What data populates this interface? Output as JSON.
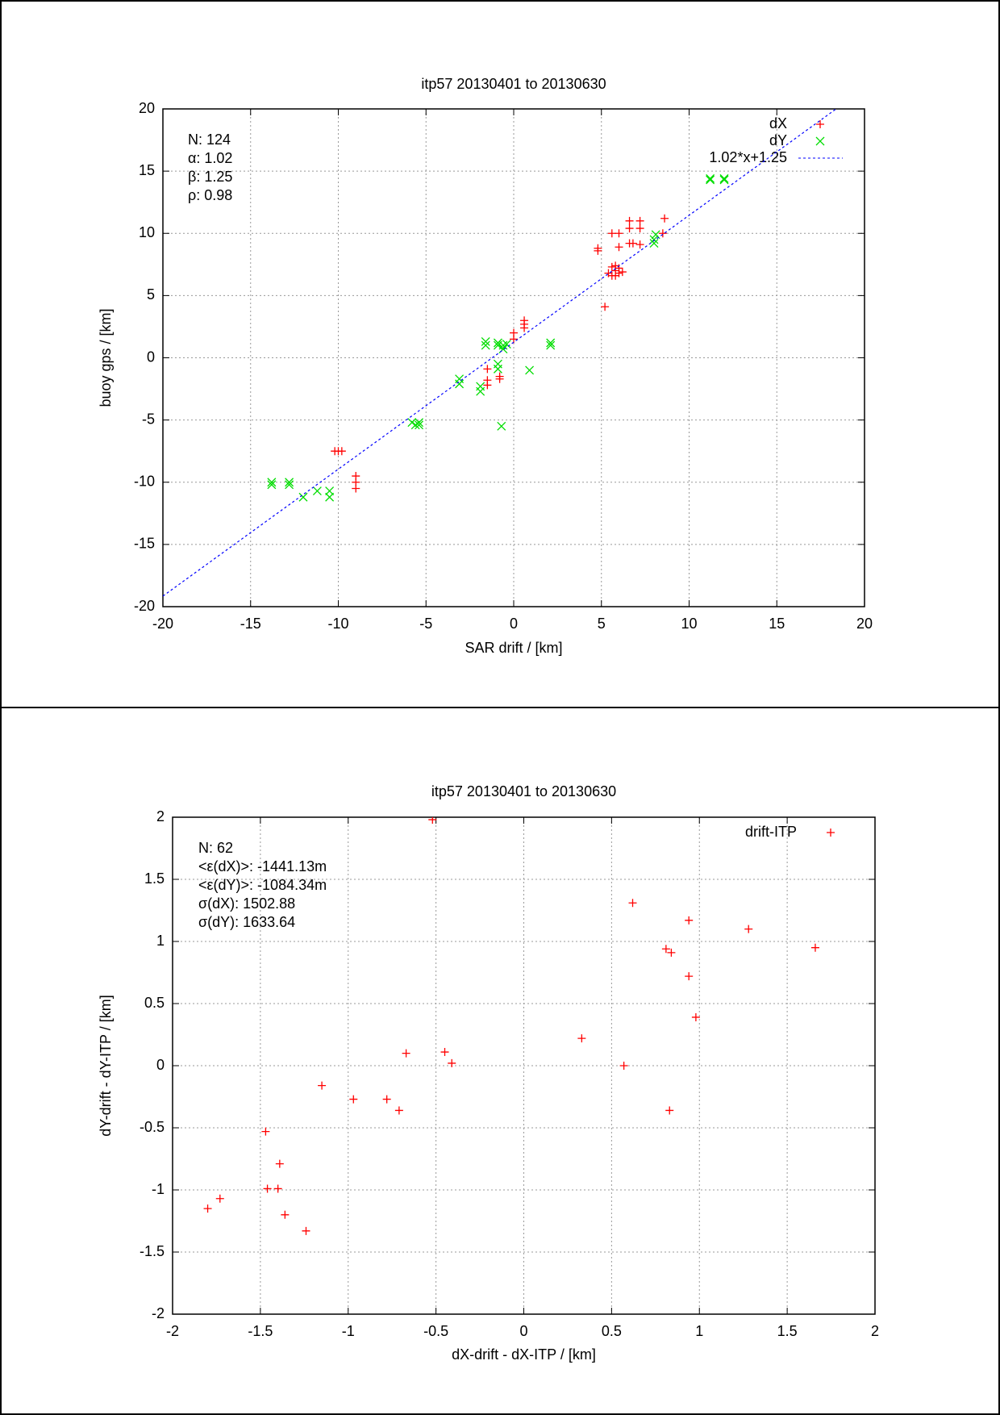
{
  "chart_data": [
    {
      "type": "scatter",
      "title": "itp57 20130401 to 20130630",
      "x_label": "SAR drift / [km]",
      "y_label": "buoy gps / [km]",
      "xlim": [
        -20,
        20
      ],
      "ylim": [
        -20,
        20
      ],
      "xticks": [
        -20,
        -15,
        -10,
        -5,
        0,
        5,
        10,
        15,
        20
      ],
      "yticks": [
        -20,
        -15,
        -10,
        -5,
        0,
        5,
        10,
        15,
        20
      ],
      "grid": true,
      "legend": "upper right",
      "annotations": [
        "N: 124",
        "α: 1.02",
        "β: 1.25",
        "ρ: 0.98"
      ],
      "series": [
        {
          "name": "dX",
          "color": "#ff0000",
          "marker": "plus",
          "x": [
            8.6,
            8.5,
            6.6,
            6.6,
            7.2,
            7.2,
            5.6,
            6.0,
            6.0,
            6.6,
            6.8,
            7.2,
            4.8,
            4.8,
            5.6,
            5.8,
            6.0,
            5.4,
            5.6,
            5.8,
            6.0,
            6.2,
            5.8,
            5.2,
            0.6,
            0.6,
            0.6,
            0.0,
            0.0,
            -1.5,
            -1.5,
            -1.5,
            -0.8,
            -0.8,
            -10.2,
            -10.0,
            -9.8,
            -9.0,
            -9.0,
            -9.0
          ],
          "y": [
            11.2,
            10.0,
            11.0,
            10.4,
            11.0,
            10.4,
            10.0,
            10.0,
            8.9,
            9.2,
            9.2,
            9.1,
            8.8,
            8.6,
            7.3,
            7.0,
            7.2,
            6.8,
            6.6,
            6.6,
            6.8,
            6.9,
            7.4,
            4.1,
            3.0,
            2.7,
            2.4,
            2.0,
            1.5,
            -0.9,
            -1.8,
            -2.2,
            -1.5,
            -1.7,
            -7.5,
            -7.5,
            -7.5,
            -9.5,
            -10.0,
            -10.5
          ]
        },
        {
          "name": "dY",
          "color": "#00dd00",
          "marker": "cross",
          "x": [
            11.2,
            11.2,
            12.0,
            12.0,
            8.0,
            8.0,
            8.1,
            2.1,
            2.1,
            -1.6,
            -1.6,
            -0.9,
            -0.9,
            -0.6,
            -0.6,
            -0.4,
            -0.9,
            -0.9,
            0.9,
            -0.7,
            -3.1,
            -3.1,
            -1.9,
            -1.9,
            -5.8,
            -5.6,
            -5.4,
            -5.4,
            -13.8,
            -13.8,
            -12.8,
            -12.8,
            -12.0,
            -11.2,
            -10.5,
            -10.5
          ],
          "y": [
            14.3,
            14.4,
            14.3,
            14.4,
            9.2,
            9.5,
            9.9,
            1.0,
            1.2,
            1.3,
            1.0,
            1.2,
            1.0,
            1.0,
            0.7,
            1.1,
            -0.5,
            -0.9,
            -1.0,
            -5.5,
            -1.7,
            -2.1,
            -2.3,
            -2.7,
            -5.2,
            -5.4,
            -5.2,
            -5.4,
            -10.0,
            -10.2,
            -10.0,
            -10.2,
            -11.2,
            -10.7,
            -10.7,
            -11.2
          ]
        }
      ],
      "fit": {
        "name": "1.02*x+1.25",
        "color": "#0000ff",
        "slope": 1.02,
        "intercept": 1.25
      }
    },
    {
      "type": "scatter",
      "title": "itp57 20130401 to 20130630",
      "x_label": "dX-drift - dX-ITP / [km]",
      "y_label": "dY-drift - dY-ITP / [km]",
      "xlim": [
        -2,
        2
      ],
      "ylim": [
        -2,
        2
      ],
      "xticks": [
        -2,
        -1.5,
        -1,
        -0.5,
        0,
        0.5,
        1,
        1.5,
        2
      ],
      "yticks": [
        -2,
        -1.5,
        -1,
        -0.5,
        0,
        0.5,
        1,
        1.5,
        2
      ],
      "grid": true,
      "legend": "upper right",
      "annotations": [
        "N: 62",
        "<ε(dX)>:  -1441.13m",
        "<ε(dY)>: -1084.34m",
        "σ(dX):  1502.88",
        "σ(dY):  1633.64"
      ],
      "series": [
        {
          "name": "drift-ITP",
          "color": "#ff0000",
          "marker": "plus",
          "x": [
            -0.52,
            0.62,
            0.94,
            1.28,
            0.81,
            0.84,
            1.66,
            0.94,
            0.98,
            0.33,
            0.57,
            0.83,
            -0.67,
            -0.45,
            -0.41,
            -1.15,
            -0.97,
            -0.78,
            -0.71,
            -1.47,
            -1.39,
            -1.46,
            -1.4,
            -1.36,
            -1.24,
            -1.73,
            -1.8
          ],
          "y": [
            1.98,
            1.31,
            1.17,
            1.1,
            0.94,
            0.91,
            0.95,
            0.72,
            0.39,
            0.22,
            0.0,
            -0.36,
            0.1,
            0.11,
            0.02,
            -0.16,
            -0.27,
            -0.27,
            -0.36,
            -0.53,
            -0.79,
            -0.99,
            -0.99,
            -1.2,
            -1.33,
            -1.07,
            -1.15
          ]
        }
      ]
    }
  ]
}
